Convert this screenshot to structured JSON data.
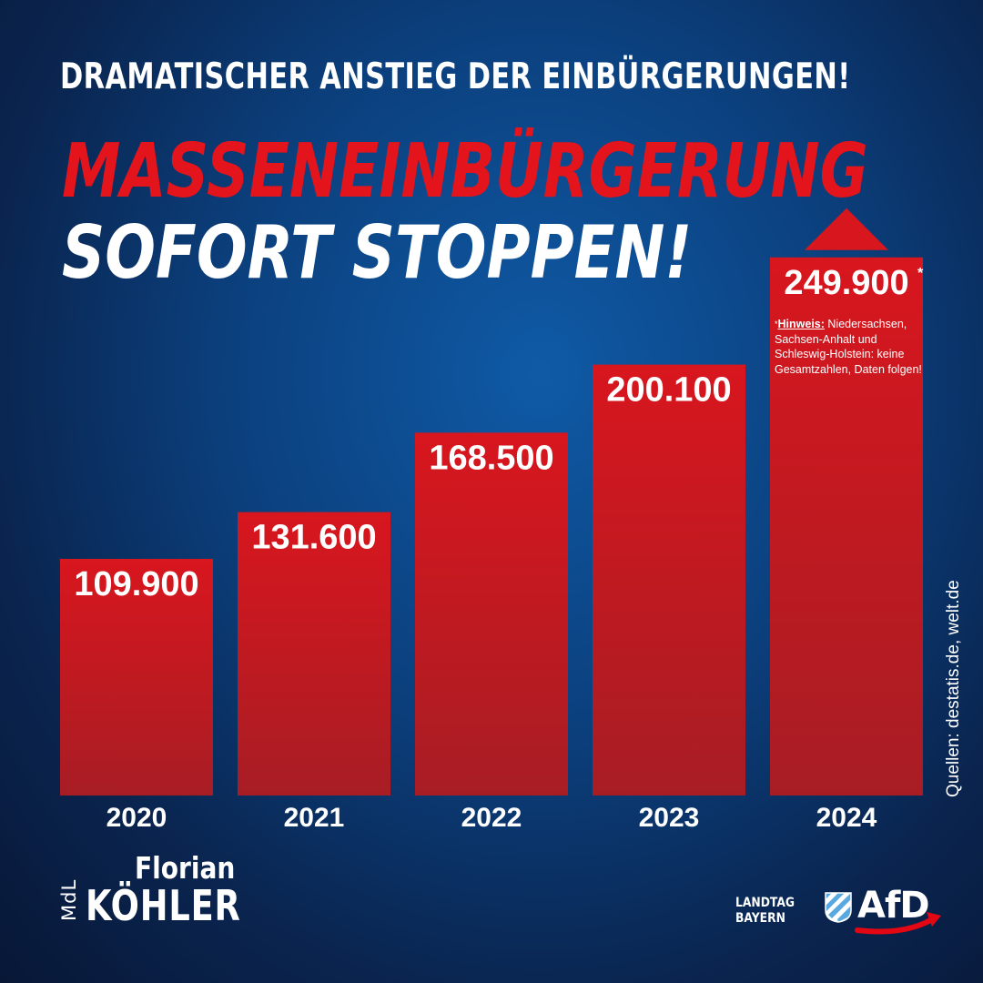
{
  "header": {
    "subtitle": "DRAMATISCHER ANSTIEG DER EINBÜRGERUNGEN!",
    "headline_red": "MASSENEINBÜRGERUNG",
    "headline_white": "SOFORT STOPPEN!"
  },
  "chart_data": {
    "type": "bar",
    "categories": [
      "2020",
      "2021",
      "2022",
      "2023",
      "2024"
    ],
    "values": [
      109900,
      131600,
      168500,
      200100,
      249900
    ],
    "value_labels": [
      "109.900",
      "131.600",
      "168.500",
      "200.100",
      "249.900"
    ],
    "footnote_marker": "*",
    "title": "",
    "xlabel": "",
    "ylabel": "",
    "grid": false,
    "legend": "none",
    "last_bar_arrow": "up",
    "bar_color": "#d8161e",
    "bar_color_bottom": "#a81d24"
  },
  "note": {
    "label": "Hinweis:",
    "text": " Niedersachsen, Sachsen-Anhalt und Schleswig-Holstein: keine Gesamtzahlen, Daten folgen!"
  },
  "sources": "Quellen: destatis.de, welt.de",
  "signature": {
    "title": "MdL",
    "first_name": "Florian",
    "last_name": "KÖHLER"
  },
  "branding": {
    "landtag_line1": "LANDTAG",
    "landtag_line2": "BAYERN",
    "party": "AfD",
    "party_color": "#e30613",
    "crest_colors": [
      "#5aa8e0",
      "#ffffff"
    ]
  },
  "colors": {
    "accent_red": "#e4141c",
    "background_dark": "#0a2550",
    "background_light": "#0f5aa6"
  }
}
